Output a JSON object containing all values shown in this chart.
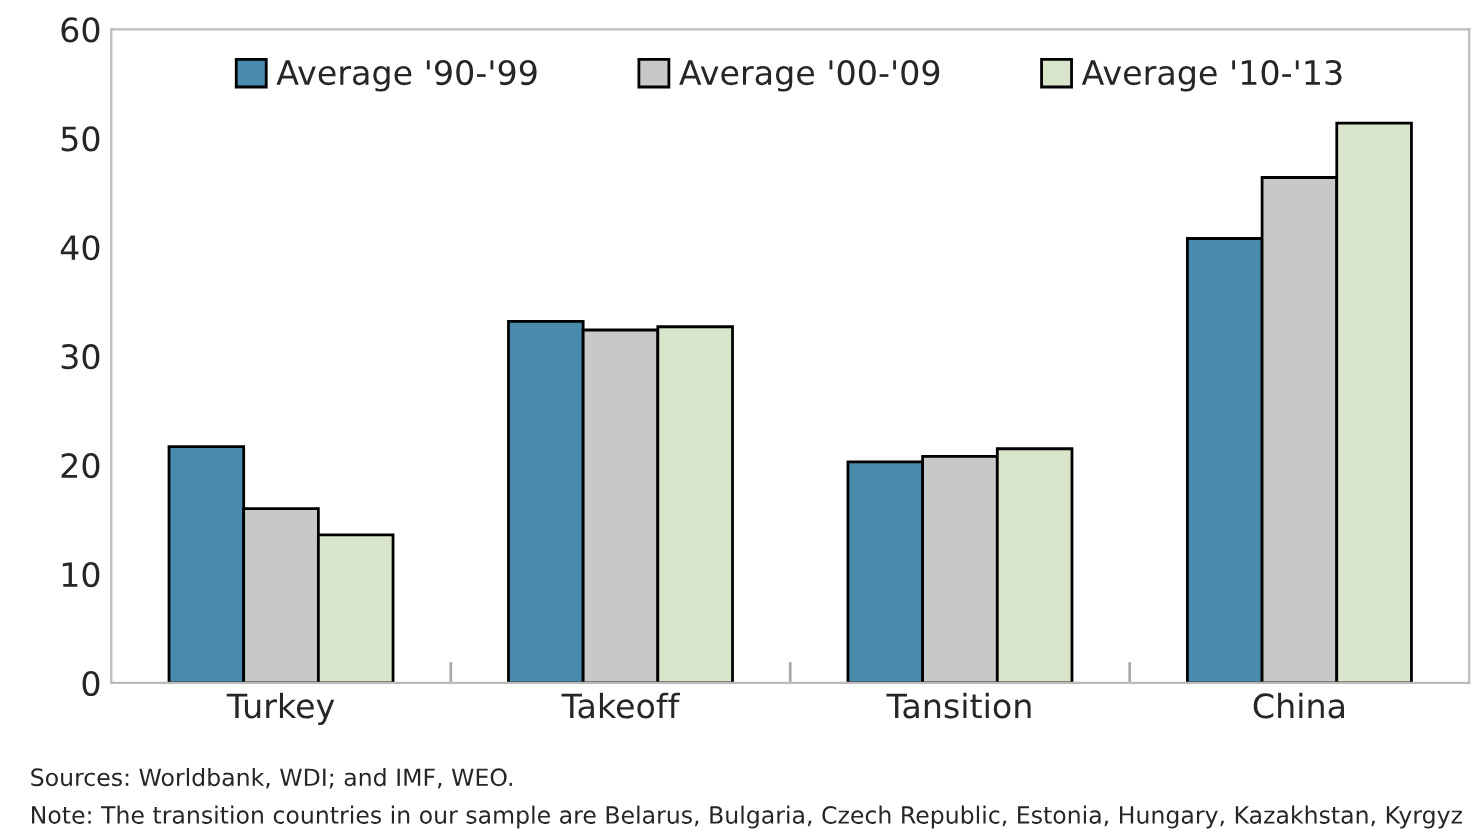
{
  "chart_data": {
    "type": "bar",
    "categories": [
      "Turkey",
      "Takeoff",
      "Tansition",
      "China"
    ],
    "series": [
      {
        "name": "Average '90-'99",
        "color": "#4a8aad",
        "values": [
          21.7,
          33.2,
          20.3,
          40.8
        ]
      },
      {
        "name": "Average '00-'09",
        "color": "#c8c8c8",
        "values": [
          16.0,
          32.4,
          20.8,
          46.4
        ]
      },
      {
        "name": "Average '10-'13",
        "color": "#d9e5cb",
        "values": [
          13.6,
          32.7,
          21.5,
          51.4
        ]
      }
    ],
    "ylim": [
      0,
      60
    ],
    "yticks": [
      0,
      10,
      20,
      30,
      40,
      50,
      60
    ],
    "grid": false,
    "legend": "top",
    "annotations": [
      "Sources: Worldbank, WDI; and IMF, WEO.",
      "Note: The transition countries in our sample are Belarus, Bulgaria, Czech Republic, Estonia, Hungary, Kazakhstan, Kyrgyz"
    ]
  }
}
